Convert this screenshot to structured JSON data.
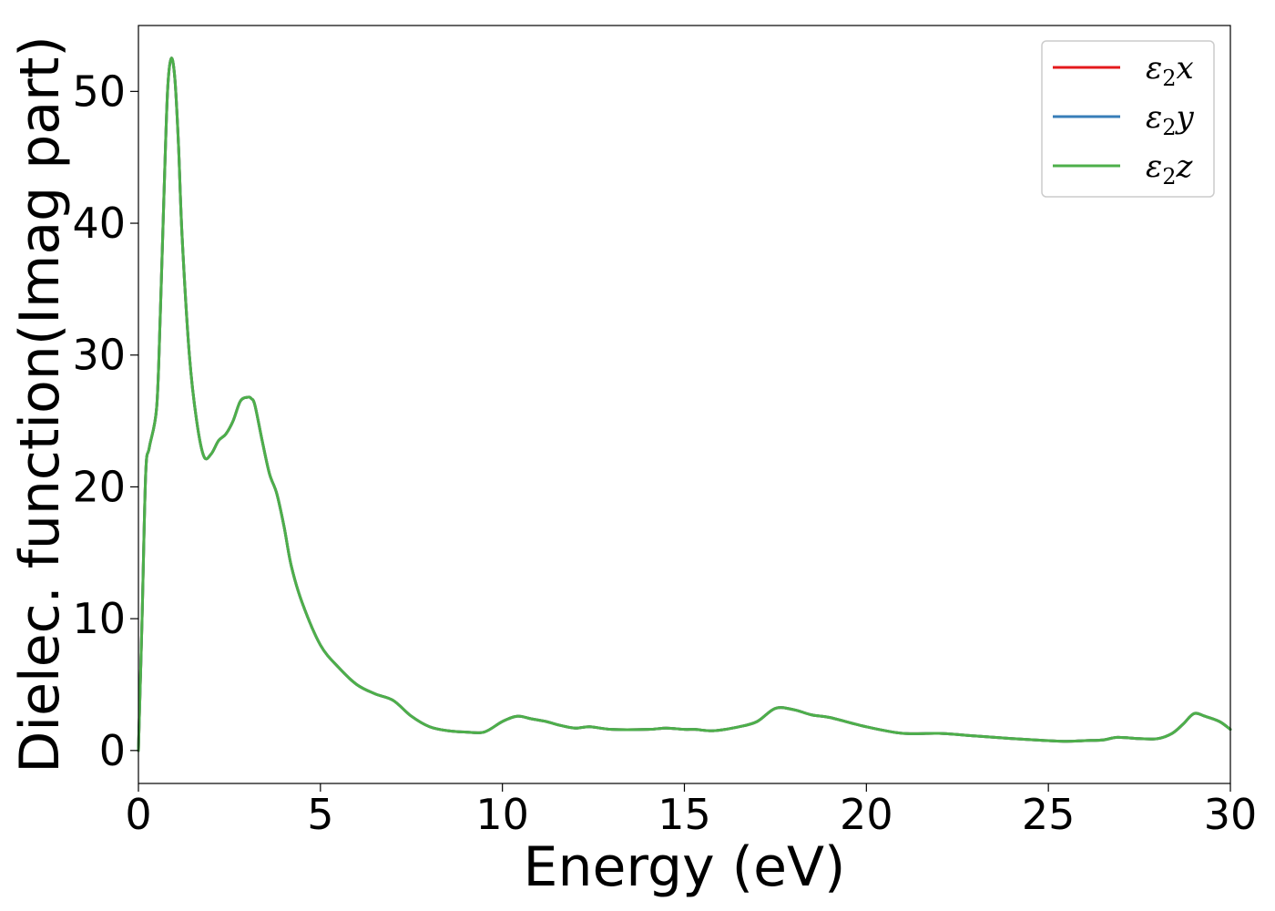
{
  "chart_data": {
    "type": "line",
    "title": "",
    "xlabel": "Energy (eV)",
    "ylabel": "Dielec. function(Imag part)",
    "xlim": [
      0,
      30
    ],
    "ylim": [
      -2.5,
      55
    ],
    "xticks": [
      0,
      5,
      10,
      15,
      20,
      25,
      30
    ],
    "xtick_labels": [
      "0",
      "5",
      "10",
      "15",
      "20",
      "25",
      "30"
    ],
    "yticks": [
      0,
      10,
      20,
      30,
      40,
      50
    ],
    "ytick_labels": [
      "0",
      "10",
      "20",
      "30",
      "40",
      "50"
    ],
    "grid": false,
    "legend_position": "top-right",
    "x": [
      0,
      0.1,
      0.2,
      0.3,
      0.5,
      0.6,
      0.7,
      0.8,
      0.9,
      1.0,
      1.1,
      1.2,
      1.4,
      1.6,
      1.8,
      2.0,
      2.2,
      2.4,
      2.6,
      2.8,
      3.0,
      3.1,
      3.2,
      3.4,
      3.6,
      3.8,
      4.0,
      4.2,
      4.5,
      5.0,
      5.5,
      6.0,
      6.5,
      7.0,
      7.5,
      8.0,
      8.5,
      9.0,
      9.5,
      10.0,
      10.4,
      10.8,
      11.2,
      11.6,
      12.0,
      12.4,
      13.0,
      14.0,
      14.5,
      15.0,
      15.3,
      15.8,
      16.5,
      17.0,
      17.5,
      18.0,
      18.5,
      19.0,
      20.0,
      21.0,
      22.0,
      23.0,
      24.0,
      25.0,
      25.5,
      26.0,
      26.5,
      26.9,
      27.5,
      28.0,
      28.4,
      28.7,
      29.0,
      29.3,
      29.7,
      30.0
    ],
    "series": [
      {
        "name": "ε₂x",
        "color": "#e41a1c",
        "values": [
          0,
          10,
          21,
          23,
          26,
          33,
          42,
          50,
          52.5,
          51,
          46,
          39,
          30,
          25,
          22.3,
          22.5,
          23.5,
          24,
          25,
          26.5,
          26.8,
          26.7,
          26.2,
          23.5,
          21,
          19.5,
          17,
          14,
          11.2,
          8,
          6.3,
          5,
          4.3,
          3.8,
          2.6,
          1.8,
          1.5,
          1.4,
          1.4,
          2.2,
          2.6,
          2.4,
          2.2,
          1.9,
          1.7,
          1.8,
          1.6,
          1.6,
          1.7,
          1.6,
          1.6,
          1.5,
          1.8,
          2.2,
          3.2,
          3.1,
          2.7,
          2.5,
          1.8,
          1.3,
          1.3,
          1.1,
          0.9,
          0.75,
          0.7,
          0.75,
          0.8,
          1.0,
          0.9,
          0.9,
          1.3,
          2.0,
          2.8,
          2.6,
          2.2,
          1.6
        ]
      },
      {
        "name": "ε₂y",
        "color": "#377eb8",
        "values": [
          0,
          10,
          21,
          23,
          26,
          33,
          42,
          50,
          52.5,
          51,
          46,
          39,
          30,
          25,
          22.3,
          22.5,
          23.5,
          24,
          25,
          26.5,
          26.8,
          26.7,
          26.2,
          23.5,
          21,
          19.5,
          17,
          14,
          11.2,
          8,
          6.3,
          5,
          4.3,
          3.8,
          2.6,
          1.8,
          1.5,
          1.4,
          1.4,
          2.2,
          2.6,
          2.4,
          2.2,
          1.9,
          1.7,
          1.8,
          1.6,
          1.6,
          1.7,
          1.6,
          1.6,
          1.5,
          1.8,
          2.2,
          3.2,
          3.1,
          2.7,
          2.5,
          1.8,
          1.3,
          1.3,
          1.1,
          0.9,
          0.75,
          0.7,
          0.75,
          0.8,
          1.0,
          0.9,
          0.9,
          1.3,
          2.0,
          2.8,
          2.6,
          2.2,
          1.6
        ]
      },
      {
        "name": "ε₂z",
        "color": "#4daf4a",
        "values": [
          0,
          10,
          21,
          23,
          26,
          33,
          42,
          50,
          52.5,
          51,
          46,
          39,
          30,
          25,
          22.3,
          22.5,
          23.5,
          24,
          25,
          26.5,
          26.8,
          26.7,
          26.2,
          23.5,
          21,
          19.5,
          17,
          14,
          11.2,
          8,
          6.3,
          5,
          4.3,
          3.8,
          2.6,
          1.8,
          1.5,
          1.4,
          1.4,
          2.2,
          2.6,
          2.4,
          2.2,
          1.9,
          1.7,
          1.8,
          1.6,
          1.6,
          1.7,
          1.6,
          1.6,
          1.5,
          1.8,
          2.2,
          3.2,
          3.1,
          2.7,
          2.5,
          1.8,
          1.3,
          1.3,
          1.1,
          0.9,
          0.75,
          0.7,
          0.75,
          0.8,
          1.0,
          0.9,
          0.9,
          1.3,
          2.0,
          2.8,
          2.6,
          2.2,
          1.6
        ]
      }
    ],
    "legend": [
      {
        "label_base": "ε",
        "label_sub": "2",
        "label_axis": "x"
      },
      {
        "label_base": "ε",
        "label_sub": "2",
        "label_axis": "y"
      },
      {
        "label_base": "ε",
        "label_sub": "2",
        "label_axis": "z"
      }
    ]
  }
}
